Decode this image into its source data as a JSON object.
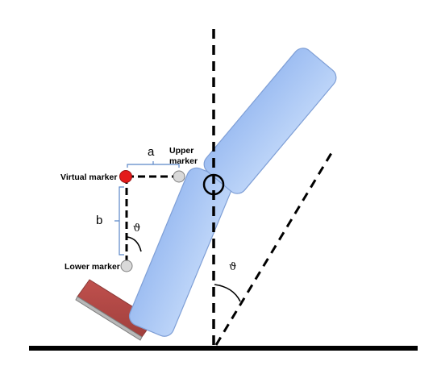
{
  "labels": {
    "upper_marker_line1": "Upper",
    "upper_marker_line2": "marker",
    "virtual_marker": "Virtual marker",
    "lower_marker": "Lower marker",
    "a": "a",
    "b": "b",
    "theta_small": "ϑ",
    "theta_large": "ϑ"
  },
  "colors": {
    "segment_fill": "#a8c6f4",
    "segment_stroke": "#7f9fd6",
    "virtual_marker": "#e41a1a",
    "physical_marker": "#d9d9d9",
    "foot_block": "#c0504d",
    "ground": "#000000"
  }
}
